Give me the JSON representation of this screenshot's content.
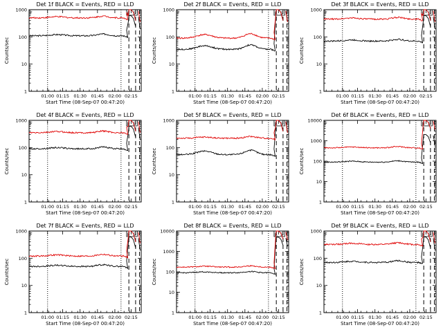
{
  "chart_data": [
    {
      "type": "line",
      "title": "Det 1f BLACK = Events, RED = LLD",
      "ylabel": "Counts/sec",
      "xlabel": "Start Time (08-Sep-07 00:47:20)",
      "x_ticks": [
        "01:00",
        "01:15",
        "01:30",
        "01:45",
        "02:00",
        "02:15"
      ],
      "y_ticks": [
        "1",
        "10",
        "100",
        "1000"
      ],
      "ylim": [
        1,
        1000
      ],
      "yscale": "log",
      "markers": [
        "F",
        "E",
        "S"
      ],
      "series": [
        {
          "color": "#000000",
          "baseline": 110,
          "hump": 0,
          "end": 600
        },
        {
          "color": "#e00000",
          "baseline": 500,
          "hump": 0,
          "end": 1000
        }
      ]
    },
    {
      "type": "line",
      "title": "Det 2f BLACK = Events, RED = LLD",
      "ylabel": "Counts/sec",
      "xlabel": "Start Time (08-Sep-07 00:47:20)",
      "x_ticks": [
        "01:00",
        "01:15",
        "01:30",
        "01:45",
        "02:00",
        "02:15"
      ],
      "y_ticks": [
        "1",
        "10",
        "100",
        "1000"
      ],
      "ylim": [
        1,
        1000
      ],
      "yscale": "log",
      "markers": [
        "F",
        "E",
        "S"
      ],
      "series": [
        {
          "color": "#000000",
          "baseline": 35,
          "hump": 10,
          "end": 1000
        },
        {
          "color": "#e00000",
          "baseline": 90,
          "hump": 25,
          "end": 1000
        }
      ]
    },
    {
      "type": "line",
      "title": "Det 3f BLACK = Events, RED = LLD",
      "ylabel": "Counts/sec",
      "xlabel": "Start Time (08-Sep-07 00:47:20)",
      "x_ticks": [
        "01:00",
        "01:15",
        "01:30",
        "01:45",
        "02:00",
        "02:15"
      ],
      "y_ticks": [
        "1",
        "10",
        "100",
        "1000"
      ],
      "ylim": [
        1,
        1000
      ],
      "yscale": "log",
      "markers": [
        "F",
        "E",
        "S"
      ],
      "series": [
        {
          "color": "#000000",
          "baseline": 70,
          "hump": 0,
          "end": 600
        },
        {
          "color": "#e00000",
          "baseline": 450,
          "hump": 0,
          "end": 1000
        }
      ]
    },
    {
      "type": "line",
      "title": "Det 4f BLACK = Events, RED = LLD",
      "ylabel": "Counts/sec",
      "xlabel": "Start Time (08-Sep-07 00:47:20)",
      "x_ticks": [
        "01:00",
        "01:15",
        "01:30",
        "01:45",
        "02:00",
        "02:15"
      ],
      "y_ticks": [
        "1",
        "10",
        "100",
        "1000"
      ],
      "ylim": [
        1,
        1000
      ],
      "yscale": "log",
      "markers": [
        "F",
        "E",
        "S"
      ],
      "series": [
        {
          "color": "#000000",
          "baseline": 90,
          "hump": 0,
          "end": 600
        },
        {
          "color": "#e00000",
          "baseline": 350,
          "hump": 0,
          "end": 1000
        }
      ]
    },
    {
      "type": "line",
      "title": "Det 5f BLACK = Events, RED = LLD",
      "ylabel": "Counts/sec",
      "xlabel": "Start Time (08-Sep-07 00:47:20)",
      "x_ticks": [
        "01:00",
        "01:15",
        "01:30",
        "01:45",
        "02:00",
        "02:15"
      ],
      "y_ticks": [
        "1",
        "10",
        "100",
        "1000"
      ],
      "ylim": [
        1,
        1000
      ],
      "yscale": "log",
      "markers": [
        "F",
        "E",
        "S"
      ],
      "series": [
        {
          "color": "#000000",
          "baseline": 55,
          "hump": 10,
          "end": 1000
        },
        {
          "color": "#e00000",
          "baseline": 220,
          "hump": 0,
          "end": 1000
        }
      ]
    },
    {
      "type": "line",
      "title": "Det 6f BLACK = Events, RED = LLD",
      "ylabel": "Counts/sec",
      "xlabel": "Start Time (08-Sep-07 00:47:20)",
      "x_ticks": [
        "01:00",
        "01:15",
        "01:30",
        "01:45",
        "02:00",
        "02:15"
      ],
      "y_ticks": [
        "1",
        "10",
        "100",
        "1000",
        "10000"
      ],
      "ylim": [
        1,
        10000
      ],
      "yscale": "log",
      "markers": [
        "F",
        "E",
        "S"
      ],
      "series": [
        {
          "color": "#000000",
          "baseline": 90,
          "hump": 0,
          "end": 2000
        },
        {
          "color": "#e00000",
          "baseline": 450,
          "hump": 0,
          "end": 10000
        }
      ]
    },
    {
      "type": "line",
      "title": "Det 7f BLACK = Events, RED = LLD",
      "ylabel": "Counts/sec",
      "xlabel": "Start Time (08-Sep-07 00:47:20)",
      "x_ticks": [
        "01:00",
        "01:15",
        "01:30",
        "01:45",
        "02:00",
        "02:15"
      ],
      "y_ticks": [
        "1",
        "10",
        "100",
        "1000"
      ],
      "ylim": [
        1,
        1000
      ],
      "yscale": "log",
      "markers": [
        "F",
        "E",
        "S"
      ],
      "series": [
        {
          "color": "#000000",
          "baseline": 50,
          "hump": 0,
          "end": 600
        },
        {
          "color": "#e00000",
          "baseline": 120,
          "hump": 0,
          "end": 1000
        }
      ]
    },
    {
      "type": "line",
      "title": "Det 8f BLACK = Events, RED = LLD",
      "ylabel": "Counts/sec",
      "xlabel": "Start Time (08-Sep-07 00:47:20)",
      "x_ticks": [
        "01:00",
        "01:15",
        "01:30",
        "01:45",
        "02:00",
        "02:15"
      ],
      "y_ticks": [
        "1",
        "10",
        "100",
        "1000",
        "10000"
      ],
      "ylim": [
        1,
        10000
      ],
      "yscale": "log",
      "markers": [
        "F",
        "E",
        "S"
      ],
      "series": [
        {
          "color": "#000000",
          "baseline": 90,
          "hump": 0,
          "end": 5000
        },
        {
          "color": "#e00000",
          "baseline": 170,
          "hump": 0,
          "end": 10000
        }
      ]
    },
    {
      "type": "line",
      "title": "Det 9f BLACK = Events, RED = LLD",
      "ylabel": "Counts/sec",
      "xlabel": "Start Time (08-Sep-07 00:47:20)",
      "x_ticks": [
        "01:00",
        "01:15",
        "01:30",
        "01:45",
        "02:00",
        "02:15"
      ],
      "y_ticks": [
        "1",
        "10",
        "100",
        "1000"
      ],
      "ylim": [
        1,
        1000
      ],
      "yscale": "log",
      "markers": [
        "F",
        "E",
        "S"
      ],
      "series": [
        {
          "color": "#000000",
          "baseline": 70,
          "hump": 0,
          "end": 600
        },
        {
          "color": "#e00000",
          "baseline": 320,
          "hump": 0,
          "end": 1000
        }
      ]
    }
  ]
}
